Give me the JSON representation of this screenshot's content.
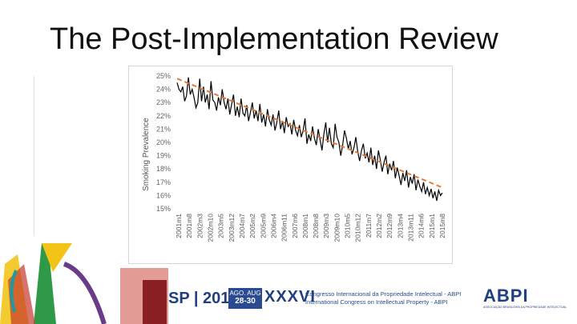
{
  "slide": {
    "title": "The Post-Implementation Review"
  },
  "chart_data": {
    "type": "line",
    "ylabel": "Smoking Prevalence",
    "xlabel": "",
    "ylim": [
      15,
      25
    ],
    "yticks": [
      "15%",
      "16%",
      "17%",
      "18%",
      "19%",
      "20%",
      "21%",
      "22%",
      "23%",
      "24%",
      "25%"
    ],
    "xticks": [
      "2001m1",
      "2001m8",
      "2002m3",
      "2002m10",
      "2003m5",
      "2003m12",
      "2004m7",
      "2005m2",
      "2005m9",
      "2006m4",
      "2006m11",
      "2007m6",
      "2008m1",
      "2008m8",
      "2009m3",
      "2009m10",
      "2010m5",
      "2010m12",
      "2011m7",
      "2012m2",
      "2012m9",
      "2013m4",
      "2013m11",
      "2014m6",
      "2015m1",
      "2015m8"
    ],
    "series": [
      {
        "type": "line",
        "color": "#000000",
        "values": [
          24.5,
          24.0,
          23.8,
          24.2,
          23.1,
          23.5,
          24.9,
          23.6,
          24.0,
          23.4,
          22.6,
          23.0,
          24.8,
          23.1,
          24.2,
          23.0,
          23.6,
          22.5,
          24.6,
          23.2,
          23.0,
          22.4,
          23.4,
          22.8,
          24.0,
          23.0,
          22.5,
          23.3,
          22.1,
          22.9,
          23.6,
          22.0,
          22.7,
          21.9,
          23.3,
          22.2,
          22.0,
          22.8,
          21.6,
          22.3,
          23.0,
          21.8,
          22.4,
          21.6,
          22.9,
          21.5,
          22.1,
          21.2,
          22.5,
          21.7,
          21.3,
          22.1,
          20.9,
          21.5,
          22.4,
          21.0,
          21.6,
          20.7,
          21.9,
          21.2,
          21.4,
          20.6,
          21.7,
          20.9,
          20.5,
          21.3,
          20.4,
          20.9,
          21.8,
          19.9,
          20.6,
          20.1,
          21.2,
          20.3,
          19.8,
          21.0,
          20.2,
          19.4,
          20.6,
          21.5,
          20.0,
          21.1,
          19.9,
          19.6,
          21.4,
          20.4,
          20.0,
          19.0,
          19.8,
          20.9,
          20.3,
          19.5,
          20.1,
          19.1,
          19.6,
          20.4,
          19.3,
          18.6,
          19.4,
          19.9,
          18.8,
          19.2,
          18.5,
          19.6,
          18.3,
          19.0,
          18.0,
          19.4,
          18.7,
          17.8,
          18.5,
          19.0,
          17.6,
          18.4,
          17.9,
          18.6,
          17.3,
          18.1,
          17.5,
          16.8,
          17.7,
          17.1,
          17.9,
          16.6,
          17.4,
          16.9,
          17.6,
          16.4,
          17.2,
          16.7,
          16.3,
          17.0,
          16.1,
          16.6,
          16.0,
          16.5,
          15.8,
          16.3,
          15.6,
          16.4,
          16.0,
          16.2
        ]
      },
      {
        "type": "trend",
        "color": "#e07b39",
        "style": "dashed",
        "values": [
          24.8,
          16.6
        ]
      }
    ],
    "grid": false,
    "legend": "none"
  },
  "footer": {
    "sp_year": "SP | 2016",
    "dates_line1": "AGO. AUG",
    "dates_line2": "28-30",
    "roman_numeral": "XXXVI",
    "congress_line1": "Congresso Internacional da Propriedade Intelectual - ABPI",
    "congress_line2": "International Congress on Intellectual Property - ABPI",
    "logo_text": "ABPI",
    "logo_subtext": "ASSOCIAÇÃO BRASILEIRA DA PROPRIEDADE INTELECTUAL"
  },
  "colors": {
    "brand_blue": "#1f3f7f",
    "deco_yellow": "#f2c418",
    "deco_green": "#2e9a48",
    "deco_red": "#c8372d",
    "deco_teal": "#1a9aa6"
  }
}
